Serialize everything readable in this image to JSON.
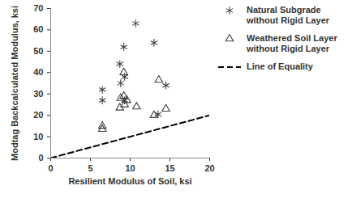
{
  "chart_data": {
    "type": "scatter",
    "xlabel": "Resilient Modulus of Soil, ksi",
    "ylabel": "Modtag Backcalculated Modulus, ksi",
    "xlim": [
      0,
      20
    ],
    "xticks": [
      0,
      5,
      10,
      15,
      20
    ],
    "ylim": [
      0,
      70
    ],
    "yticks": [
      0,
      10,
      20,
      30,
      40,
      50,
      60,
      70
    ],
    "grid": false,
    "legend": "right",
    "series": [
      {
        "name": "Natural Subgrade without Rigid Layer",
        "type": "scatter",
        "marker": "asterisk",
        "color": "#404040",
        "x": [
          6.5,
          6.5,
          8.7,
          9.2,
          8.8,
          9.3,
          9.3,
          10.7,
          13,
          13.5,
          14.5
        ],
        "values": [
          32,
          27,
          44,
          52,
          35,
          38,
          27,
          63,
          54,
          20.5,
          34
        ]
      },
      {
        "name": "Weathered Soil Layer without Rigid Layer",
        "type": "scatter",
        "marker": "triangle",
        "color": "#404040",
        "x": [
          6.5,
          6.5,
          8.7,
          8.8,
          9.2,
          9.2,
          9.3,
          9.6,
          10.8,
          13,
          13.6,
          14.5
        ],
        "values": [
          15,
          13.5,
          23.5,
          28,
          29,
          40,
          25,
          27,
          24,
          20,
          36.5,
          23
        ]
      },
      {
        "name": "Line of Equality",
        "type": "line",
        "line_style": "dashed",
        "color": "#000000",
        "x": [
          0,
          20
        ],
        "values": [
          0,
          20
        ]
      }
    ]
  }
}
